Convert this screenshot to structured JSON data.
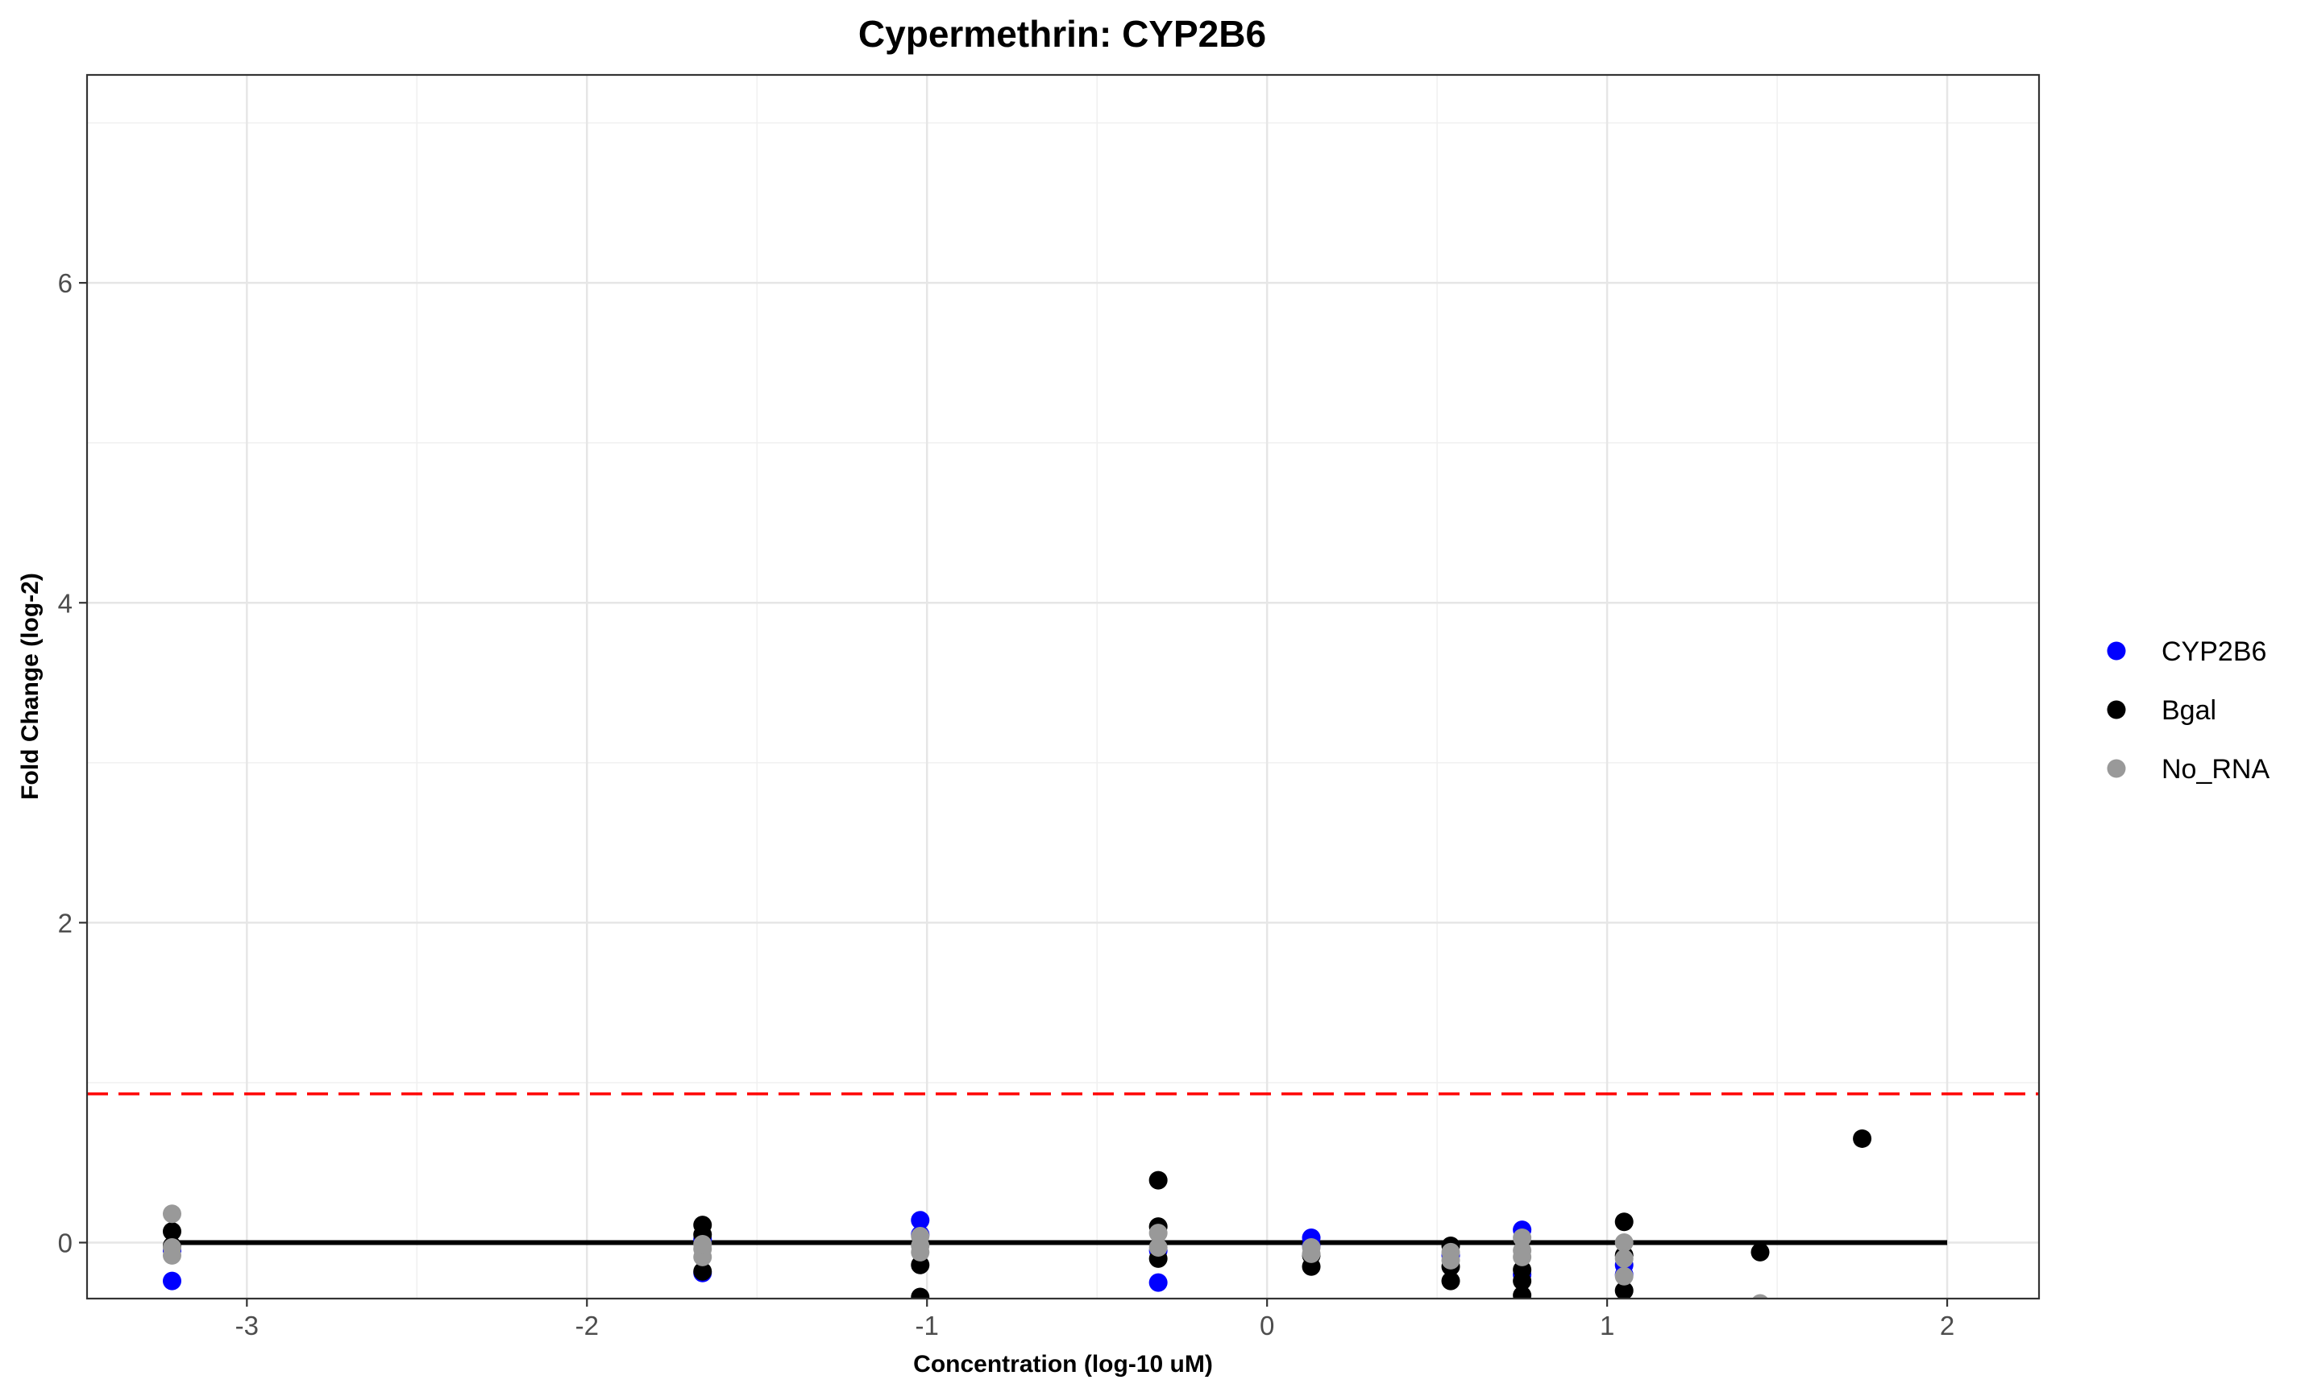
{
  "chart_data": {
    "type": "scatter",
    "title": "Cypermethrin: CYP2B6",
    "xlabel": "Concentration (log-10 uM)",
    "ylabel": "Fold Change (log-2)",
    "xlim": [
      -3.47,
      2.27
    ],
    "ylim": [
      -0.35,
      7.3
    ],
    "x_ticks": [
      -3,
      -2,
      -1,
      0,
      1,
      2
    ],
    "y_ticks": [
      0,
      2,
      4,
      6
    ],
    "x_tick_labels": [
      "-3",
      "-2",
      "-1",
      "0",
      "1",
      "2"
    ],
    "y_tick_labels": [
      "0",
      "2",
      "4",
      "6"
    ],
    "grid": true,
    "legend_position": "right",
    "threshold_line": {
      "y": 0.93,
      "color": "#ff0000",
      "style": "dashed"
    },
    "baseline_fit": {
      "x": [
        -3.22,
        2.0
      ],
      "y": [
        0,
        0
      ],
      "color": "#000000"
    },
    "series": [
      {
        "name": "CYP2B6",
        "color": "#0000ff",
        "points": [
          [
            -3.22,
            -0.24
          ],
          [
            -3.22,
            -0.05
          ],
          [
            -1.66,
            -0.19
          ],
          [
            -1.66,
            0.02
          ],
          [
            -1.02,
            0.14
          ],
          [
            -1.02,
            0.05
          ],
          [
            -0.32,
            -0.25
          ],
          [
            -0.32,
            -0.05
          ],
          [
            0.13,
            0.03
          ],
          [
            0.13,
            -0.02
          ],
          [
            0.54,
            -0.08
          ],
          [
            0.75,
            0.08
          ],
          [
            0.75,
            -0.2
          ],
          [
            1.05,
            -0.14
          ],
          [
            1.05,
            -0.2
          ]
        ]
      },
      {
        "name": "Bgal",
        "color": "#000000",
        "points": [
          [
            -3.22,
            0.07
          ],
          [
            -3.22,
            -0.02
          ],
          [
            -1.66,
            0.11
          ],
          [
            -1.66,
            0.05
          ],
          [
            -1.66,
            -0.18
          ],
          [
            -1.02,
            -0.14
          ],
          [
            -1.02,
            -0.34
          ],
          [
            -0.32,
            0.39
          ],
          [
            -0.32,
            0.1
          ],
          [
            -0.32,
            -0.1
          ],
          [
            0.13,
            -0.15
          ],
          [
            0.13,
            -0.08
          ],
          [
            0.54,
            -0.24
          ],
          [
            0.54,
            -0.15
          ],
          [
            0.54,
            -0.02
          ],
          [
            0.75,
            -0.24
          ],
          [
            0.75,
            -0.17
          ],
          [
            0.75,
            -0.33
          ],
          [
            1.05,
            0.13
          ],
          [
            1.05,
            -0.3
          ],
          [
            1.05,
            -0.08
          ],
          [
            1.45,
            -0.06
          ],
          [
            1.75,
            0.65
          ]
        ]
      },
      {
        "name": "No_RNA",
        "color": "#999999",
        "points": [
          [
            -3.22,
            0.18
          ],
          [
            -3.22,
            -0.03
          ],
          [
            -3.22,
            -0.08
          ],
          [
            -1.66,
            -0.04
          ],
          [
            -1.66,
            -0.09
          ],
          [
            -1.66,
            -0.01
          ],
          [
            -1.02,
            0.04
          ],
          [
            -1.02,
            -0.02
          ],
          [
            -1.02,
            -0.06
          ],
          [
            -0.32,
            0.06
          ],
          [
            -0.32,
            -0.03
          ],
          [
            0.13,
            -0.03
          ],
          [
            0.13,
            -0.07
          ],
          [
            0.54,
            -0.06
          ],
          [
            0.54,
            -0.11
          ],
          [
            0.75,
            0.03
          ],
          [
            0.75,
            -0.05
          ],
          [
            0.75,
            -0.09
          ],
          [
            1.05,
            0.0
          ],
          [
            1.05,
            -0.1
          ],
          [
            1.05,
            -0.21
          ],
          [
            1.45,
            -0.38
          ]
        ]
      }
    ]
  }
}
